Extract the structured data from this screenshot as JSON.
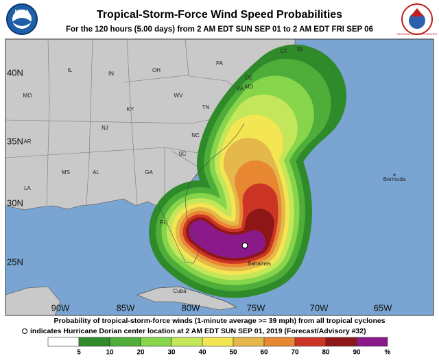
{
  "header": {
    "title": "Tropical-Storm-Force Wind Speed Probabilities",
    "subtitle": "For the 120 hours (5.00 days) from 2 AM EDT SUN SEP 01 to 2 AM EDT FRI SEP 06",
    "logo_left": "NOAA",
    "logo_right": "NATIONAL WEATHER SERVICE"
  },
  "map": {
    "lat_labels": [
      "40N",
      "35N",
      "30N",
      "25N"
    ],
    "lon_labels": [
      "90W",
      "85W",
      "80W",
      "75W",
      "70W",
      "65W"
    ],
    "places": [
      "IL",
      "IN",
      "OH",
      "PA",
      "CT",
      "RI",
      "MO",
      "KY",
      "WV",
      "VA",
      "MD",
      "DE",
      "NJ",
      "TN",
      "NC",
      "AR",
      "SC",
      "MS",
      "AL",
      "GA",
      "LA",
      "FL",
      "Bermuda",
      "Bahamas",
      "Cuba"
    ]
  },
  "footer": {
    "line1": "Probability of tropical-storm-force winds (1-minute average >= 39 mph) from all tropical cyclones",
    "line2": "indicates Hurricane Dorian center location at 2 AM EDT SUN SEP 01, 2019 (Forecast/Advisory #32)",
    "scale_ticks": [
      5,
      10,
      20,
      30,
      40,
      50,
      60,
      70,
      80,
      90
    ],
    "scale_unit": "%",
    "scale_colors": [
      "#ffffff",
      "#2f8a2a",
      "#4fae3a",
      "#86d54a",
      "#c4e65a",
      "#f4e552",
      "#e4b84a",
      "#e98832",
      "#cc3526",
      "#8e1616",
      "#8a1a8a"
    ]
  }
}
